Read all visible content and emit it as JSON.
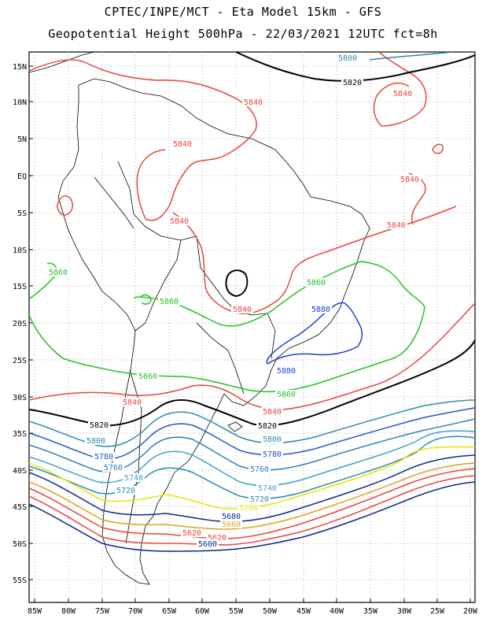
{
  "title_line1": "CPTEC/INPE/MCT -  Eta Model 15km - GFS",
  "title_line2": "Geopotential Height 500hPa - 22/03/2021 12UTC fct=8h",
  "lat_labels": [
    "15N",
    "10N",
    "5N",
    "EQ",
    "5S",
    "10S",
    "15S",
    "20S",
    "25S",
    "30S",
    "35S",
    "40S",
    "45S",
    "50S",
    "55S"
  ],
  "lon_labels": [
    "85W",
    "80W",
    "75W",
    "70W",
    "65W",
    "60W",
    "55W",
    "50W",
    "45W",
    "40W",
    "35W",
    "30W",
    "25W",
    "20W"
  ],
  "contours": [
    {
      "value": "5840",
      "color": "#e8453c"
    },
    {
      "value": "5800",
      "color": "#2a8bb0"
    },
    {
      "value": "5820",
      "color": "#000000"
    },
    {
      "value": "5860",
      "color": "#22c322"
    },
    {
      "value": "5880",
      "color": "#1a3fd8"
    },
    {
      "value": "5780",
      "color": "#1f55c8"
    },
    {
      "value": "5760",
      "color": "#2e7fb8"
    },
    {
      "value": "5740",
      "color": "#3aa6c4"
    },
    {
      "value": "5720",
      "color": "#2a8bb0"
    },
    {
      "value": "5700",
      "color": "#e6e600"
    },
    {
      "value": "5680",
      "color": "#0b2a8a"
    },
    {
      "value": "5660",
      "color": "#e0a020"
    },
    {
      "value": "5620",
      "color": "#e8453c"
    },
    {
      "value": "5600",
      "color": "#0b2a8a"
    }
  ]
}
